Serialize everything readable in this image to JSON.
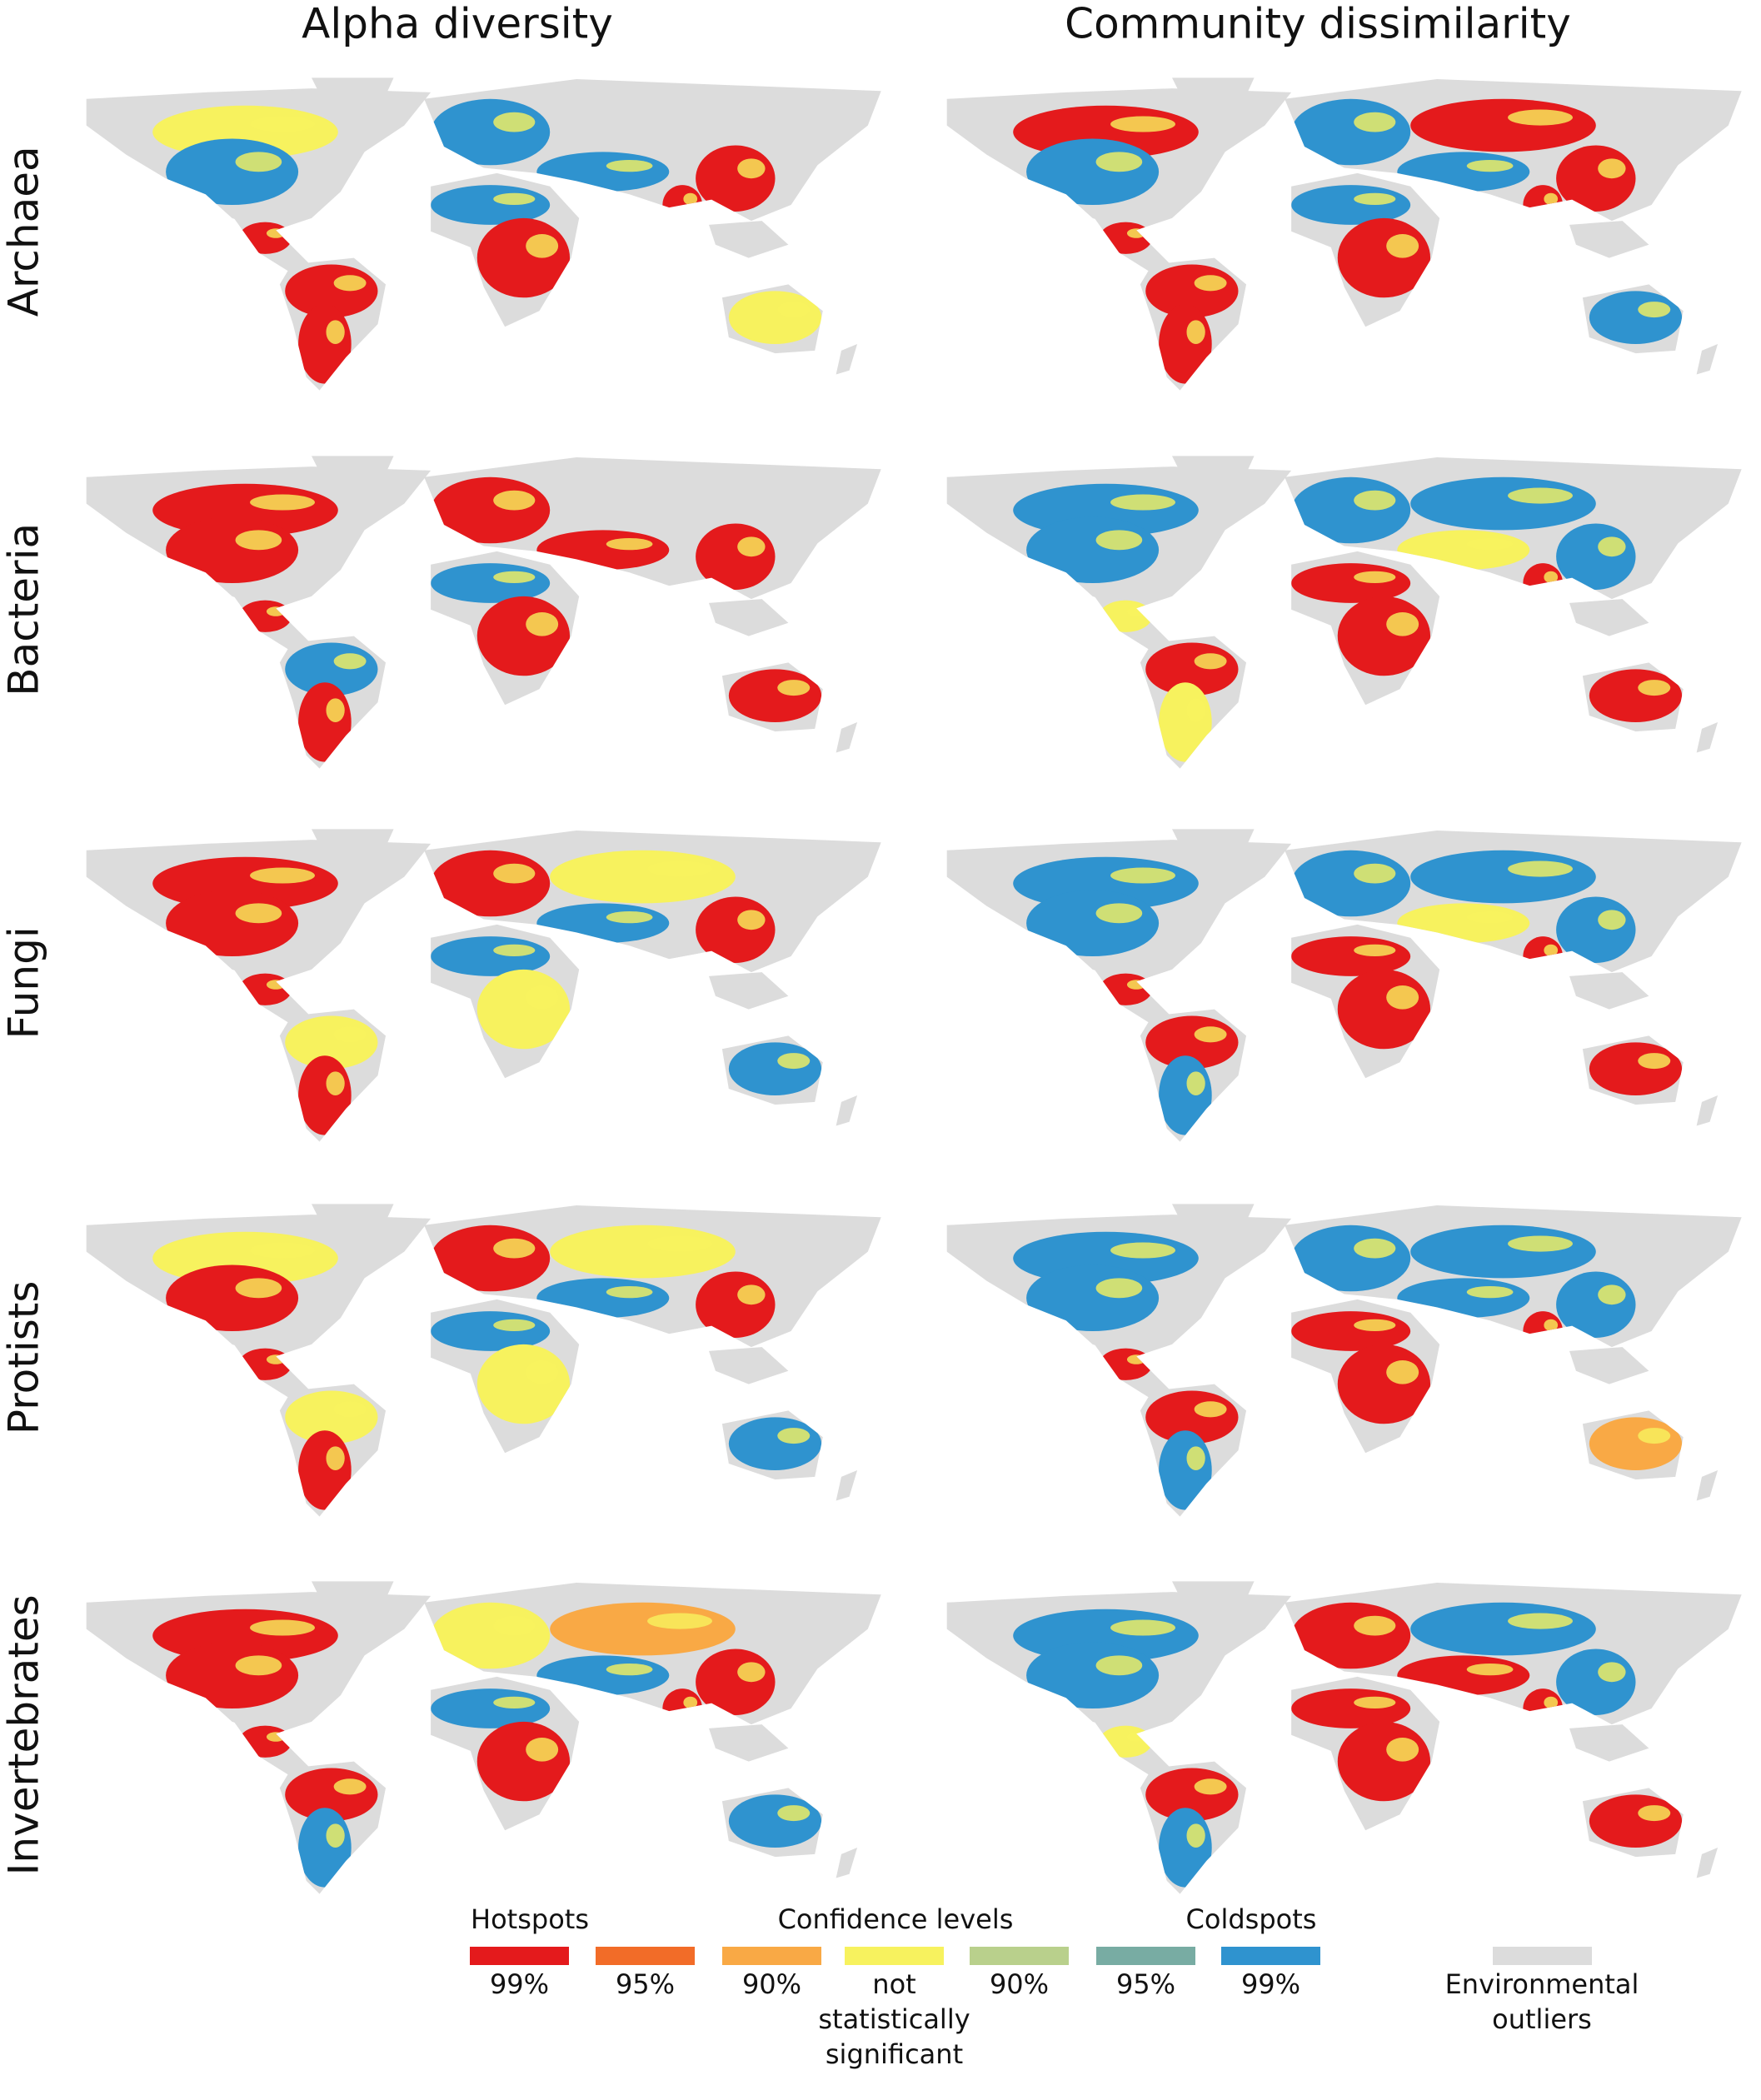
{
  "columns": [
    "Alpha diversity",
    "Community dissimilarity"
  ],
  "rows": [
    "Archaea",
    "Bacteria",
    "Fungi",
    "Protists",
    "Invertebrates"
  ],
  "legend": {
    "hotspots": "Hotspots",
    "confidence": "Confidence levels",
    "coldspots": "Coldspots",
    "items": [
      {
        "label": [
          "99%"
        ],
        "color": "#e41a1c"
      },
      {
        "label": [
          "95%"
        ],
        "color": "#f26c28"
      },
      {
        "label": [
          "90%"
        ],
        "color": "#f9a945"
      },
      {
        "label": [
          "not",
          "statistically",
          "significant"
        ],
        "color": "#f7f25e"
      },
      {
        "label": [
          "90%"
        ],
        "color": "#b9d08c"
      },
      {
        "label": [
          "95%"
        ],
        "color": "#78aca3"
      },
      {
        "label": [
          "99%"
        ],
        "color": "#2f93cf"
      }
    ],
    "outliers": {
      "label": [
        "Environmental",
        "outliers"
      ],
      "color": "#dcdcdc"
    }
  }
}
